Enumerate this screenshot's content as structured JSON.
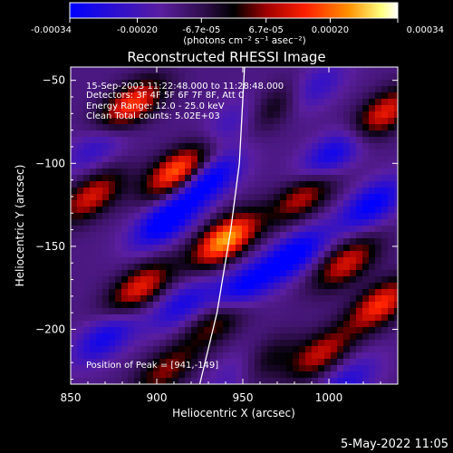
{
  "chart_data": {
    "type": "heatmap",
    "title": "Reconstructed RHESSI Image",
    "xlabel": "Heliocentric X (arcsec)",
    "ylabel": "Heliocentric Y (arcsec)",
    "xlim": [
      850,
      1040
    ],
    "ylim": [
      -233,
      -42
    ],
    "x_ticks": [
      "850",
      "900",
      "950",
      "1000"
    ],
    "x_tick_values": [
      850,
      900,
      950,
      1000
    ],
    "y_ticks": [
      "-50",
      "-100",
      "-150",
      "-200"
    ],
    "y_tick_values": [
      -50,
      -100,
      -150,
      -200
    ],
    "colorbar": {
      "range": [
        -0.00034,
        0.00034
      ],
      "tick_labels": [
        "-0.00034",
        "-0.00020",
        "-6.7e-05",
        "6.7e-05",
        "0.00020",
        "0.00034"
      ],
      "tick_values": [
        -0.00034,
        -0.0002,
        -6.7e-05,
        6.7e-05,
        0.0002,
        0.00034
      ],
      "unit_label": "(photons cm⁻² s⁻¹ asec⁻²)",
      "colors": [
        "#0000ff",
        "#5a1e9e",
        "#3c1060",
        "#000000",
        "#a00000",
        "#ff2000",
        "#ff9000",
        "#ffff80",
        "#ffffff"
      ]
    },
    "annotations": [
      "15-Sep-2003 11:22:48.000 to 11:28:48.000",
      "Detectors: 3F 4F 5F 6F 7F 8F, Att 0",
      "Energy Range: 12.0 - 25.0 keV",
      "Clean     Total counts: 5.02E+03"
    ],
    "peak": {
      "label": "Position of Peak = [941,-149]",
      "x": 941,
      "y": -149
    },
    "limb_curve": [
      [
        925,
        -233
      ],
      [
        935,
        -190
      ],
      [
        943,
        -140
      ],
      [
        948,
        -100
      ],
      [
        951,
        -42
      ]
    ],
    "sources": [
      {
        "x": 940,
        "y": -146,
        "peak": 0.00034
      },
      {
        "x": 912,
        "y": -105,
        "peak": 0.0003
      },
      {
        "x": 885,
        "y": -65,
        "peak": 0.00026
      },
      {
        "x": 862,
        "y": -120,
        "peak": 0.0002
      },
      {
        "x": 935,
        "y": -195,
        "peak": 0.00014
      },
      {
        "x": 890,
        "y": -175,
        "peak": 0.00022
      },
      {
        "x": 985,
        "y": -120,
        "peak": 0.00018
      },
      {
        "x": 1010,
        "y": -160,
        "peak": 0.0002
      },
      {
        "x": 1030,
        "y": -185,
        "peak": 0.00024
      },
      {
        "x": 995,
        "y": -215,
        "peak": 0.00018
      },
      {
        "x": 1032,
        "y": -70,
        "peak": 0.00022
      },
      {
        "x": 960,
        "y": -220,
        "peak": 0.00016
      },
      {
        "x": 905,
        "y": -225,
        "peak": 0.00014
      },
      {
        "x": 970,
        "y": -65,
        "peak": 0.00012
      }
    ],
    "negative_regions": [
      {
        "x": 930,
        "y": -110,
        "peak": -0.00028
      },
      {
        "x": 905,
        "y": -135,
        "peak": -0.0003
      },
      {
        "x": 950,
        "y": -175,
        "peak": -0.00026
      },
      {
        "x": 980,
        "y": -155,
        "peak": -0.00028
      },
      {
        "x": 1002,
        "y": -95,
        "peak": -0.00024
      },
      {
        "x": 1025,
        "y": -125,
        "peak": -0.00026
      },
      {
        "x": 870,
        "y": -205,
        "peak": -0.00022
      },
      {
        "x": 915,
        "y": -185,
        "peak": -0.0002
      },
      {
        "x": 950,
        "y": -225,
        "peak": -0.0002
      },
      {
        "x": 1010,
        "y": -232,
        "peak": -0.00018
      },
      {
        "x": 865,
        "y": -90,
        "peak": -0.00016
      },
      {
        "x": 990,
        "y": -55,
        "peak": -0.00018
      },
      {
        "x": 945,
        "y": -75,
        "peak": -0.00014
      }
    ]
  },
  "footer": {
    "date": "5-May-2022 11:05"
  }
}
